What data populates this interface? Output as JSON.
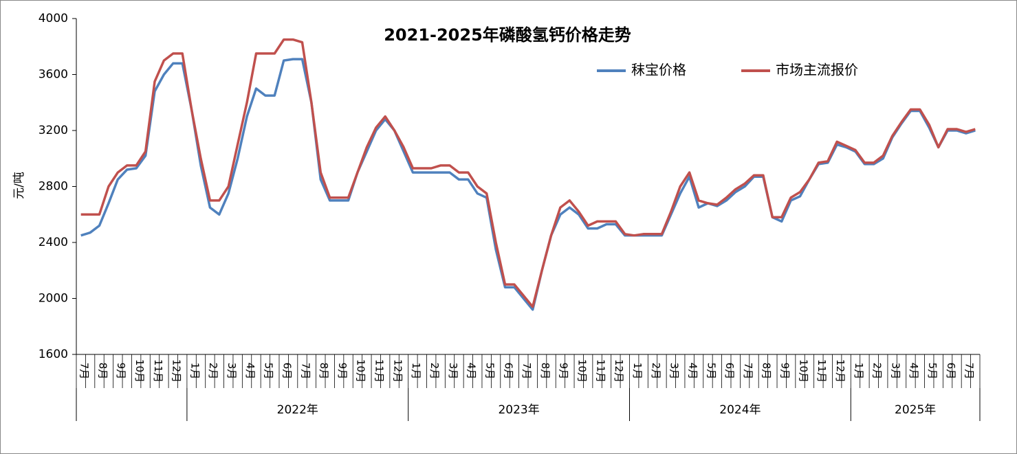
{
  "chart_data": {
    "type": "line",
    "title": "2021-2025年磷酸氢钙价格走势",
    "y_label": "元/吨",
    "ylim": [
      1600,
      4000
    ],
    "yticks": [
      1600,
      2000,
      2400,
      2800,
      3200,
      3600,
      4000
    ],
    "categories": [
      "7月",
      null,
      "8月",
      null,
      "9月",
      null,
      "10月",
      null,
      "11月",
      null,
      "12月",
      null,
      "1月",
      null,
      "2月",
      null,
      "3月",
      null,
      "4月",
      null,
      "5月",
      null,
      "6月",
      null,
      "7月",
      null,
      "8月",
      null,
      "9月",
      null,
      "10月",
      null,
      "11月",
      null,
      "12月",
      null,
      "1月",
      null,
      "2月",
      null,
      "3月",
      null,
      "4月",
      null,
      "5月",
      null,
      "6月",
      null,
      "7月",
      null,
      "8月",
      null,
      "9月",
      null,
      "10月",
      null,
      "11月",
      null,
      "12月",
      null,
      "1月",
      null,
      "2月",
      null,
      "3月",
      null,
      "4月",
      null,
      "5月",
      null,
      "6月",
      null,
      "7月",
      null,
      "8月",
      null,
      "9月",
      null,
      "10月",
      null,
      "11月",
      null,
      "12月",
      null,
      "1月",
      null,
      "2月",
      null,
      "3月",
      null,
      "4月",
      null,
      "5月",
      null,
      "6月",
      null,
      "7月",
      null
    ],
    "year_groups": [
      {
        "label": null,
        "count": 12
      },
      {
        "label": "2022年",
        "count": 24
      },
      {
        "label": "2023年",
        "count": 24
      },
      {
        "label": "2024年",
        "count": 24
      },
      {
        "label": "2025年",
        "count": 14
      }
    ],
    "legend": "top-right",
    "series": [
      {
        "name": "秣宝价格",
        "color": "#4f81bd",
        "values": [
          2450,
          2470,
          2520,
          2680,
          2850,
          2920,
          2930,
          3020,
          3480,
          3600,
          3680,
          3680,
          3350,
          2950,
          2650,
          2600,
          2750,
          3000,
          3300,
          3500,
          3450,
          3450,
          3700,
          3710,
          3710,
          3400,
          2850,
          2700,
          2700,
          2700,
          2900,
          3050,
          3200,
          3280,
          3200,
          3050,
          2900,
          2900,
          2900,
          2900,
          2900,
          2850,
          2850,
          2750,
          2720,
          2350,
          2080,
          2080,
          2000,
          1920,
          2200,
          2450,
          2600,
          2650,
          2600,
          2500,
          2500,
          2530,
          2530,
          2450,
          2450,
          2450,
          2450,
          2450,
          2600,
          2750,
          2870,
          2650,
          2680,
          2660,
          2700,
          2760,
          2800,
          2870,
          2870,
          2580,
          2550,
          2700,
          2730,
          2850,
          2960,
          2970,
          3100,
          3080,
          3050,
          2960,
          2960,
          3000,
          3150,
          3250,
          3340,
          3340,
          3220,
          3080,
          3200,
          3200,
          3180,
          3200
        ]
      },
      {
        "name": "市场主流报价",
        "color": "#c0504d",
        "values": [
          2600,
          2600,
          2600,
          2800,
          2900,
          2950,
          2950,
          3050,
          3550,
          3700,
          3750,
          3750,
          3350,
          3000,
          2700,
          2700,
          2800,
          3100,
          3400,
          3750,
          3750,
          3750,
          3850,
          3850,
          3830,
          3400,
          2900,
          2720,
          2720,
          2720,
          2900,
          3080,
          3220,
          3300,
          3200,
          3080,
          2930,
          2930,
          2930,
          2950,
          2950,
          2900,
          2900,
          2800,
          2750,
          2400,
          2100,
          2100,
          2020,
          1940,
          2200,
          2450,
          2650,
          2700,
          2620,
          2520,
          2550,
          2550,
          2550,
          2460,
          2450,
          2460,
          2460,
          2460,
          2620,
          2800,
          2900,
          2700,
          2680,
          2670,
          2720,
          2780,
          2820,
          2880,
          2880,
          2580,
          2580,
          2720,
          2760,
          2850,
          2970,
          2980,
          3120,
          3090,
          3060,
          2970,
          2970,
          3020,
          3160,
          3260,
          3350,
          3350,
          3240,
          3080,
          3210,
          3210,
          3190,
          3210
        ]
      }
    ]
  }
}
